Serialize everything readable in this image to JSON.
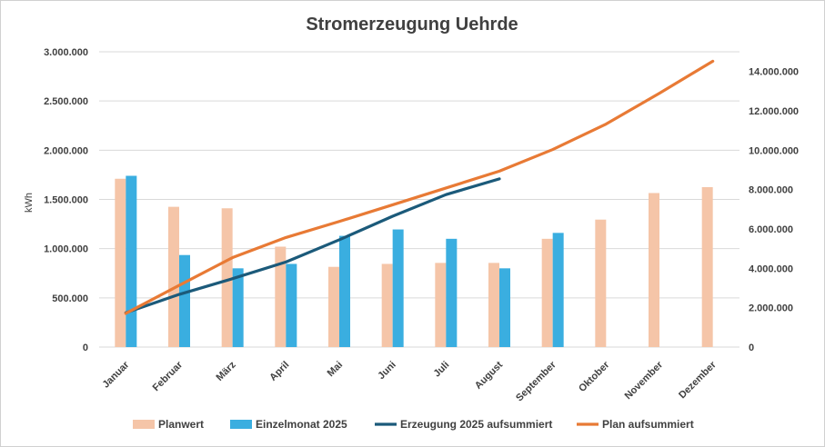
{
  "chart_data": {
    "type": "bar",
    "title": "Stromerzeugung Uehrde",
    "ylabel": "kWh",
    "ylim": [
      0,
      3000000
    ],
    "y2lim": [
      0,
      15000000
    ],
    "yticks": [
      "0",
      "500.000",
      "1.000.000",
      "1.500.000",
      "2.000.000",
      "2.500.000",
      "3.000.000"
    ],
    "yticks_values": [
      0,
      500000,
      1000000,
      1500000,
      2000000,
      2500000,
      3000000
    ],
    "y2ticks": [
      "0",
      "2.000.000",
      "4.000.000",
      "6.000.000",
      "8.000.000",
      "10.000.000",
      "12.000.000",
      "14.000.000"
    ],
    "y2ticks_values": [
      0,
      2000000,
      4000000,
      6000000,
      8000000,
      10000000,
      12000000,
      14000000
    ],
    "categories": [
      "Januar",
      "Februar",
      "März",
      "April",
      "Mai",
      "Juni",
      "Juli",
      "August",
      "September",
      "Oktober",
      "November",
      "Dezember"
    ],
    "series": [
      {
        "name": "Planwert",
        "type": "bar",
        "axis": "left",
        "color": "#F5C5A8",
        "values": [
          1710000,
          1425000,
          1410000,
          1020000,
          815000,
          845000,
          855000,
          855000,
          1100000,
          1295000,
          1565000,
          1625000
        ]
      },
      {
        "name": "Einzelmonat 2025",
        "type": "bar",
        "axis": "left",
        "color": "#3AAEE0",
        "values": [
          1740000,
          935000,
          800000,
          845000,
          1130000,
          1195000,
          1100000,
          800000,
          1160000,
          null,
          null,
          null
        ]
      },
      {
        "name": "Erzeugung 2025 aufsummiert",
        "type": "line",
        "axis": "right",
        "color": "#1B5A7A",
        "values": [
          1740000,
          2675000,
          3475000,
          4320000,
          5450000,
          6645000,
          7745000,
          8545000,
          null,
          null,
          null,
          null
        ]
      },
      {
        "name": "Plan aufsummiert",
        "type": "line",
        "axis": "right",
        "color": "#E87A35",
        "values": [
          1710000,
          3135000,
          4545000,
          5565000,
          6380000,
          7225000,
          8080000,
          8935000,
          10035000,
          11330000,
          12895000,
          14520000
        ]
      }
    ],
    "legend_position": "bottom"
  }
}
